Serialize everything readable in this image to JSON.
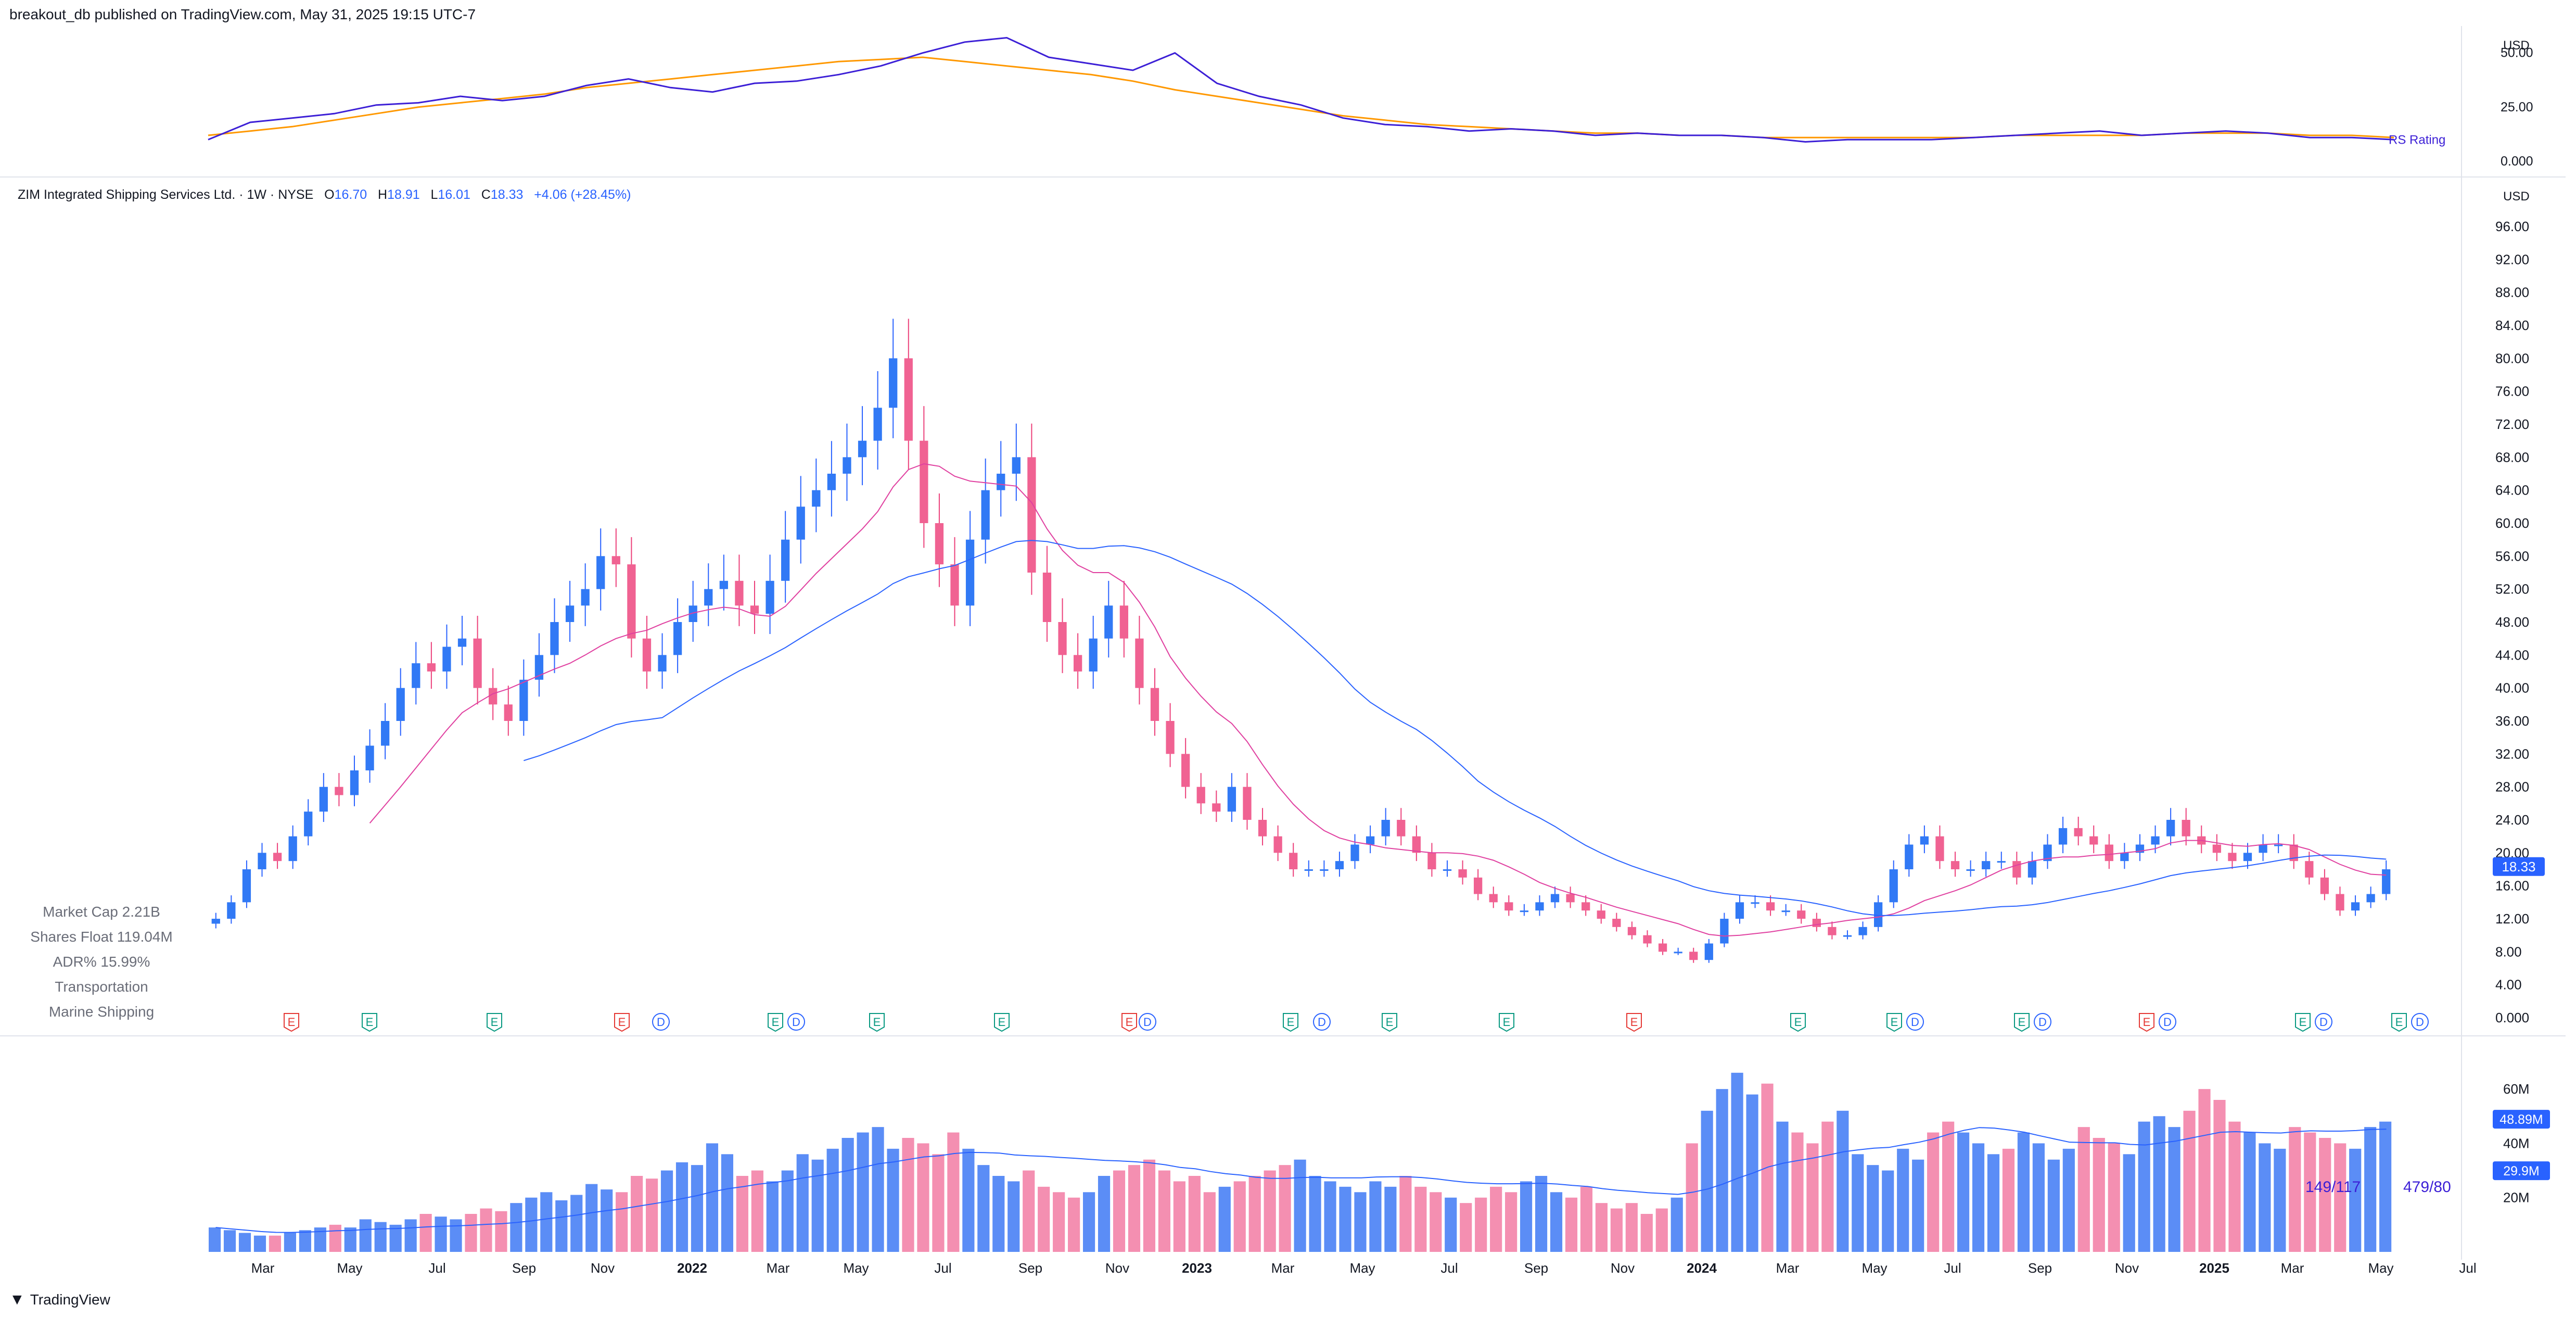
{
  "header": {
    "published_line": "breakout_db published on TradingView.com, May 31, 2025 19:15 UTC-7"
  },
  "legend": {
    "symbol_desc": "ZIM Integrated Shipping Services Ltd. · 1W · NYSE",
    "o_label": "O",
    "o_value": "16.70",
    "h_label": "H",
    "h_value": "18.91",
    "l_label": "L",
    "l_value": "16.01",
    "c_label": "C",
    "c_value": "18.33",
    "change": "+4.06 (+28.45%)"
  },
  "stats": {
    "market_cap": "Market Cap    2.21B",
    "shares_float": "Shares Float  119.04M",
    "adr": "ADR%     15.99%",
    "sector": "Transportation",
    "industry": "Marine Shipping"
  },
  "footer": {
    "brand": "TradingView"
  },
  "colors": {
    "up": "#2962ff",
    "up_fill": "#3179f5",
    "down": "#ec407a",
    "down_fill": "#f06292",
    "ma_fast": "#e040a0",
    "ma_slow": "#2962ff",
    "rs_line": "#3c1fd6",
    "rs_ma": "#ff9800",
    "grid": "#f0f3fa",
    "text": "#131722",
    "earnings": "#e53935",
    "earnings_green": "#089981",
    "dividend": "#2962ff"
  },
  "chart_data": [
    {
      "type": "line",
      "name": "rs-panel",
      "currency": "USD",
      "y_ticks": [
        "50.00",
        "25.00",
        "0.000"
      ],
      "ylim": [
        0,
        60
      ],
      "series_label": "RS Rating",
      "rs_values": [
        10,
        18,
        20,
        22,
        26,
        27,
        30,
        28,
        30,
        35,
        38,
        34,
        32,
        36,
        37,
        40,
        44,
        50,
        55,
        57,
        48,
        45,
        42,
        50,
        36,
        30,
        26,
        20,
        17,
        16,
        14,
        15,
        14,
        12,
        13,
        12,
        12,
        11,
        9,
        10,
        10,
        10,
        11,
        12,
        13,
        14,
        12,
        13,
        14,
        13,
        11,
        11,
        10
      ],
      "rs_ma_values": [
        12,
        14,
        16,
        19,
        22,
        25,
        27,
        29,
        31,
        34,
        36,
        38,
        40,
        42,
        44,
        46,
        47,
        48,
        46,
        44,
        42,
        40,
        37,
        33,
        30,
        27,
        24,
        21,
        19,
        17,
        16,
        15,
        14,
        13,
        13,
        12,
        12,
        11,
        11,
        11,
        11,
        11,
        11,
        12,
        12,
        12,
        12,
        13,
        13,
        13,
        12,
        12,
        11
      ]
    },
    {
      "type": "candlestick",
      "name": "price-panel",
      "currency": "USD",
      "y_ticks": [
        "96.00",
        "92.00",
        "88.00",
        "84.00",
        "80.00",
        "76.00",
        "72.00",
        "68.00",
        "64.00",
        "60.00",
        "56.00",
        "52.00",
        "48.00",
        "44.00",
        "40.00",
        "36.00",
        "32.00",
        "28.00",
        "24.00",
        "20.00",
        "16.00",
        "12.00",
        "8.00",
        "4.00",
        "0.000"
      ],
      "ylim": [
        0,
        98
      ],
      "last_price": "18.33",
      "x_labels": [
        "Mar",
        "May",
        "Jul",
        "Sep",
        "Nov",
        "2022",
        "Mar",
        "May",
        "Jul",
        "Sep",
        "Nov",
        "2023",
        "Mar",
        "May",
        "Jul",
        "Sep",
        "Nov",
        "2024",
        "Mar",
        "May",
        "Jul",
        "Sep",
        "Nov",
        "2025",
        "Mar",
        "May",
        "Jul"
      ],
      "x_bold": [
        "2022",
        "2023",
        "2024",
        "2025"
      ],
      "closes": [
        12,
        14,
        18,
        20,
        19,
        22,
        25,
        28,
        27,
        30,
        33,
        36,
        40,
        43,
        42,
        45,
        46,
        40,
        38,
        36,
        41,
        44,
        48,
        50,
        52,
        56,
        55,
        46,
        42,
        44,
        48,
        50,
        52,
        53,
        50,
        49,
        53,
        58,
        62,
        64,
        66,
        68,
        70,
        74,
        80,
        70,
        60,
        55,
        50,
        58,
        64,
        66,
        68,
        54,
        48,
        44,
        42,
        46,
        50,
        46,
        40,
        36,
        32,
        28,
        26,
        25,
        28,
        24,
        22,
        20,
        18,
        18,
        18,
        19,
        21,
        22,
        24,
        22,
        20,
        18,
        18,
        17,
        15,
        14,
        13,
        13,
        14,
        15,
        14,
        13,
        12,
        11,
        10,
        9,
        8,
        8,
        7,
        9,
        12,
        14,
        14,
        13,
        13,
        12,
        11,
        10,
        10,
        11,
        14,
        18,
        21,
        22,
        19,
        18,
        18,
        19,
        19,
        17,
        19,
        21,
        23,
        22,
        21,
        19,
        20,
        21,
        22,
        24,
        22,
        21,
        20,
        19,
        20,
        21,
        21,
        19,
        17,
        15,
        13,
        14,
        15,
        18
      ],
      "earnings_markers": "E",
      "dividend_markers": "D"
    },
    {
      "type": "bar",
      "name": "volume-panel",
      "y_ticks": [
        "60M",
        "40M",
        "20M"
      ],
      "ylim": [
        0,
        70
      ],
      "last_volume": "48.89M",
      "avg_volume": "29.9M",
      "annotation_left": "149/117",
      "annotation_right": "479/80",
      "values": [
        9,
        8,
        7,
        6,
        6,
        7,
        8,
        9,
        10,
        9,
        12,
        11,
        10,
        12,
        14,
        13,
        12,
        14,
        16,
        15,
        18,
        20,
        22,
        19,
        21,
        25,
        23,
        22,
        28,
        27,
        30,
        33,
        32,
        40,
        36,
        28,
        30,
        26,
        30,
        36,
        34,
        38,
        42,
        44,
        46,
        38,
        42,
        40,
        36,
        44,
        38,
        32,
        28,
        26,
        30,
        24,
        22,
        20,
        22,
        28,
        30,
        32,
        34,
        30,
        26,
        28,
        22,
        24,
        26,
        28,
        30,
        32,
        34,
        28,
        26,
        24,
        22,
        26,
        24,
        28,
        24,
        22,
        20,
        18,
        20,
        24,
        22,
        26,
        28,
        22,
        20,
        24,
        18,
        16,
        18,
        14,
        16,
        20,
        40,
        52,
        60,
        66,
        58,
        62,
        48,
        44,
        40,
        48,
        52,
        36,
        32,
        30,
        38,
        34,
        44,
        48,
        44,
        40,
        36,
        38,
        44,
        40,
        34,
        38,
        46,
        42,
        40,
        36,
        48,
        50,
        46,
        52,
        60,
        56,
        48,
        44,
        40,
        38,
        46,
        44,
        42,
        40,
        38,
        46,
        48
      ]
    }
  ]
}
